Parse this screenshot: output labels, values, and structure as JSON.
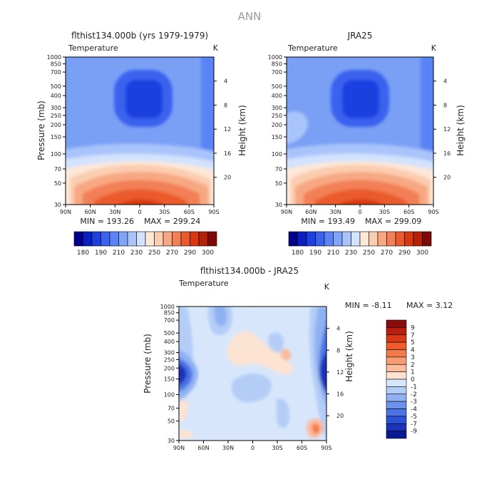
{
  "page_title": "ANN",
  "chart_data": [
    {
      "type": "heatmap",
      "title": "flthist134.000b (yrs 1979-1979)",
      "variable": "Temperature",
      "units": "K",
      "xlabel": "",
      "ylabel": "Pressure (mb)",
      "ylabel_right": "Height (km)",
      "x_ticks": [
        "90N",
        "60N",
        "30N",
        "0",
        "30S",
        "60S",
        "90S"
      ],
      "y_ticks": [
        30,
        50,
        70,
        100,
        150,
        200,
        250,
        300,
        400,
        500,
        700,
        850,
        1000
      ],
      "y_ticks_right": [
        20,
        16,
        12,
        8,
        4
      ],
      "ylim": [
        1000,
        30
      ],
      "min_label": "MIN = 193.26",
      "max_label": "MAX = 299.24",
      "min": 193.26,
      "max": 299.24,
      "colorbar_labels": [
        "180",
        "190",
        "210",
        "230",
        "250",
        "270",
        "290",
        "300"
      ],
      "colorbar_colors": [
        "#00008b",
        "#0a1fc0",
        "#1e40e0",
        "#3a62ef",
        "#5a84f5",
        "#80a4f8",
        "#a9c4fb",
        "#d3e2fd",
        "#fde8d8",
        "#fbcdb0",
        "#f7a883",
        "#f27f55",
        "#ea5a2c",
        "#d8380f",
        "#b52008",
        "#7d0a05"
      ]
    },
    {
      "type": "heatmap",
      "title": "JRA25",
      "variable": "Temperature",
      "units": "K",
      "xlabel": "",
      "ylabel": "",
      "ylabel_right": "Height (km)",
      "x_ticks": [
        "90N",
        "60N",
        "30N",
        "0",
        "30S",
        "60S",
        "90S"
      ],
      "y_ticks": [
        30,
        50,
        70,
        100,
        150,
        200,
        250,
        300,
        400,
        500,
        700,
        850,
        1000
      ],
      "y_ticks_right": [
        20,
        16,
        12,
        8,
        4
      ],
      "ylim": [
        1000,
        30
      ],
      "min_label": "MIN = 193.49",
      "max_label": "MAX = 299.09",
      "min": 193.49,
      "max": 299.09,
      "colorbar_labels": [
        "180",
        "190",
        "210",
        "230",
        "250",
        "270",
        "290",
        "300"
      ],
      "colorbar_colors": [
        "#00008b",
        "#0a1fc0",
        "#1e40e0",
        "#3a62ef",
        "#5a84f5",
        "#80a4f8",
        "#a9c4fb",
        "#d3e2fd",
        "#fde8d8",
        "#fbcdb0",
        "#f7a883",
        "#f27f55",
        "#ea5a2c",
        "#d8380f",
        "#b52008",
        "#7d0a05"
      ]
    },
    {
      "type": "heatmap",
      "title": "flthist134.000b - JRA25",
      "variable": "Temperature",
      "units": "K",
      "xlabel": "",
      "ylabel": "Pressure (mb)",
      "ylabel_right": "Height (km)",
      "x_ticks": [
        "90N",
        "60N",
        "30N",
        "0",
        "30S",
        "60S",
        "90S"
      ],
      "y_ticks": [
        30,
        50,
        70,
        100,
        150,
        200,
        250,
        300,
        400,
        500,
        700,
        850,
        1000
      ],
      "y_ticks_right": [
        20,
        16,
        12,
        8,
        4
      ],
      "ylim": [
        1000,
        30
      ],
      "min_label": "MIN = -8.11",
      "max_label": "MAX = 3.12",
      "min": -8.11,
      "max": 3.12,
      "colorbar_labels": [
        "9",
        "7",
        "5",
        "4",
        "3",
        "2",
        "1",
        "0",
        "-1",
        "-2",
        "-3",
        "-4",
        "-5",
        "-7",
        "-9"
      ],
      "colorbar_colors": [
        "#8b0a0a",
        "#b81e0e",
        "#d93a15",
        "#ef5a2a",
        "#f57a4b",
        "#f79b74",
        "#fabc9d",
        "#fde3d1",
        "#d7e6fb",
        "#b3cdf7",
        "#8fb1f3",
        "#6b93ee",
        "#4b73e4",
        "#2c51d4",
        "#1a33b8",
        "#0a1a92"
      ]
    }
  ]
}
